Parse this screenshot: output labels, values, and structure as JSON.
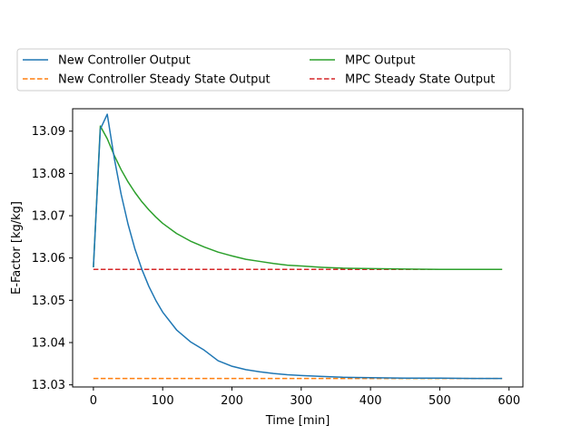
{
  "chart_data": {
    "type": "line",
    "title": "",
    "xlabel": "Time [min]",
    "ylabel": "E-Factor [kg/kg]",
    "xlim": [
      -30,
      620
    ],
    "ylim": [
      13.0295,
      13.0953
    ],
    "xticks": [
      0,
      100,
      200,
      300,
      400,
      500,
      600
    ],
    "yticks": [
      13.03,
      13.04,
      13.05,
      13.06,
      13.07,
      13.08,
      13.09
    ],
    "grid": false,
    "legend_placement": "top, outside plot, 2 columns",
    "series": [
      {
        "name": "New Controller Output",
        "color": "#1f77b4",
        "style": "solid",
        "x": [
          0,
          10,
          20,
          30,
          40,
          50,
          60,
          70,
          80,
          90,
          100,
          120,
          140,
          160,
          180,
          200,
          220,
          240,
          260,
          280,
          300,
          330,
          360,
          400,
          450,
          500,
          550,
          590
        ],
        "y": [
          13.0578,
          13.0905,
          13.094,
          13.0837,
          13.0751,
          13.068,
          13.0621,
          13.0573,
          13.0533,
          13.05,
          13.0472,
          13.043,
          13.0402,
          13.0382,
          13.0357,
          13.0344,
          13.0336,
          13.0331,
          13.0327,
          13.0324,
          13.0322,
          13.032,
          13.0318,
          13.0317,
          13.0316,
          13.0316,
          13.0315,
          13.0315
        ]
      },
      {
        "name": "New Controller Steady State Output",
        "color": "#ff7f0e",
        "style": "dashed",
        "x": [
          0,
          590
        ],
        "y": [
          13.0315,
          13.0315
        ]
      },
      {
        "name": "MPC Output",
        "color": "#2ca02c",
        "style": "solid",
        "x": [
          0,
          10,
          20,
          30,
          40,
          50,
          60,
          70,
          80,
          90,
          100,
          120,
          140,
          160,
          180,
          200,
          220,
          240,
          260,
          280,
          300,
          330,
          360,
          400,
          450,
          500,
          550,
          590
        ],
        "y": [
          13.0578,
          13.0912,
          13.0882,
          13.0843,
          13.0809,
          13.078,
          13.0755,
          13.0733,
          13.0714,
          13.0697,
          13.0682,
          13.0658,
          13.064,
          13.0626,
          13.0614,
          13.0605,
          13.0597,
          13.0592,
          13.0587,
          13.0583,
          13.0581,
          13.0578,
          13.0576,
          13.0575,
          13.0574,
          13.0573,
          13.0573,
          13.0573
        ]
      },
      {
        "name": "MPC Steady State Output",
        "color": "#d62728",
        "style": "dashed",
        "x": [
          0,
          590
        ],
        "y": [
          13.0573,
          13.0573
        ]
      }
    ]
  }
}
